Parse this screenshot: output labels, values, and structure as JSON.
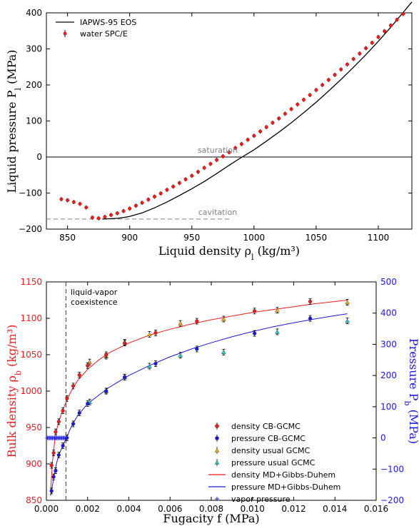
{
  "colors": {
    "red": "#ee1c1c",
    "blue": "#1a1ae0",
    "orange": "#f5a623",
    "cyan": "#2ec4c4",
    "black": "#000000",
    "gray": "#808080"
  },
  "chart_data": [
    {
      "type": "line",
      "xlabel": "Liquid density ρ_l (kg/m³)",
      "ylabel": "Liquid pressure P_l (MPa)",
      "xlim": [
        833,
        1127
      ],
      "ylim": [
        -200,
        400
      ],
      "xticks": [
        "850",
        "900",
        "950",
        "1000",
        "1050",
        "1100"
      ],
      "yticks": [
        "−200",
        "−100",
        "0",
        "100",
        "200",
        "300",
        "400"
      ],
      "legend_position": "top-left",
      "legend": [
        "IAPWS-95 EOS",
        "water SPC/E"
      ],
      "annotations": {
        "saturation": "saturation",
        "cavitation": "cavitation"
      },
      "hlines": {
        "saturation": 0,
        "cavitation": -172
      },
      "series": [
        {
          "name": "IAPWS-95 EOS",
          "kind": "line",
          "color": "#000000",
          "x": [
            878,
            885,
            890,
            895,
            900,
            910,
            920,
            930,
            940,
            950,
            960,
            970,
            980,
            990,
            1000,
            1010,
            1020,
            1030,
            1040,
            1050,
            1060,
            1070,
            1080,
            1090,
            1100,
            1110,
            1120,
            1127
          ],
          "y": [
            -172,
            -171,
            -170,
            -168,
            -165,
            -155,
            -141,
            -125,
            -107,
            -88,
            -68,
            -46,
            -23,
            -1,
            20,
            44,
            69,
            95,
            123,
            152,
            183,
            215,
            249,
            284,
            321,
            360,
            401,
            430
          ]
        },
        {
          "name": "water SPC/E",
          "kind": "points",
          "color": "#ee1c1c",
          "x": [
            845,
            850,
            855,
            860,
            865,
            870,
            875,
            880,
            885,
            890,
            895,
            900,
            905,
            910,
            915,
            920,
            925,
            930,
            935,
            940,
            945,
            950,
            955,
            960,
            965,
            970,
            975,
            980,
            985,
            990,
            995,
            1000,
            1005,
            1010,
            1015,
            1020,
            1025,
            1030,
            1035,
            1040,
            1045,
            1050,
            1055,
            1060,
            1065,
            1070,
            1075,
            1080,
            1085,
            1090,
            1095,
            1100,
            1105,
            1110,
            1115,
            1120
          ],
          "y": [
            -117,
            -120,
            -125,
            -130,
            -140,
            -168,
            -170,
            -166,
            -161,
            -156,
            -150,
            -143,
            -135,
            -127,
            -118,
            -110,
            -101,
            -91,
            -82,
            -72,
            -62,
            -52,
            -41,
            -30,
            -19,
            -8,
            2,
            13,
            25,
            36,
            48,
            59,
            71,
            83,
            95,
            107,
            120,
            133,
            146,
            159,
            172,
            186,
            200,
            214,
            228,
            243,
            257,
            272,
            287,
            302,
            317,
            333,
            349,
            365,
            381,
            397
          ]
        }
      ]
    },
    {
      "type": "scatter",
      "xlabel": "Fugacity f (MPa)",
      "ylabel_left": "Bulk density ρ_b (kg/m³)",
      "ylabel_right": "Pressure P_b (MPa)",
      "xlim": [
        0.0,
        0.016
      ],
      "ylim_left": [
        850,
        1150
      ],
      "ylim_right": [
        -200,
        500
      ],
      "xticks": [
        "0.000",
        "0.002",
        "0.004",
        "0.006",
        "0.008",
        "0.010",
        "0.012",
        "0.014",
        "0.016"
      ],
      "yticks_left": [
        "850",
        "900",
        "950",
        "1000",
        "1050",
        "1100",
        "1150"
      ],
      "yticks_right": [
        "−200",
        "−100",
        "0",
        "100",
        "200",
        "300",
        "400",
        "500"
      ],
      "vline": {
        "x": 0.00095,
        "label_line1": "liquid-vapor",
        "label_line2": "coexistence"
      },
      "legend_position": "lower-right",
      "legend": [
        "density CB-GCMC",
        "pressure CB-GCMC",
        "density usual GCMC",
        "pressure usual GCMC",
        "density MD+Gibbs-Duhem",
        "pressure MD+Gibbs-Duhem",
        "vapor pressure"
      ],
      "series": [
        {
          "name": "density CB-GCMC",
          "axis": "left",
          "color": "#ee1c1c",
          "x": [
            0.00025,
            0.00035,
            0.00045,
            0.0006,
            0.0008,
            0.001,
            0.0013,
            0.0016,
            0.002,
            0.0029,
            0.0038,
            0.0053,
            0.0073,
            0.0101,
            0.0128
          ],
          "y": [
            898,
            915,
            944,
            958,
            973,
            990,
            1007,
            1022,
            1035,
            1050,
            1066,
            1080,
            1096,
            1110,
            1123
          ]
        },
        {
          "name": "pressure CB-GCMC",
          "axis": "right",
          "color": "#1a1ae0",
          "x": [
            0.00025,
            0.00035,
            0.00045,
            0.0006,
            0.0008,
            0.001,
            0.0013,
            0.0016,
            0.002,
            0.0029,
            0.0038,
            0.0053,
            0.0073,
            0.0101,
            0.0128
          ],
          "y": [
            -170,
            -125,
            -105,
            -55,
            -25,
            0,
            45,
            80,
            110,
            150,
            195,
            238,
            285,
            335,
            383
          ]
        },
        {
          "name": "density usual GCMC",
          "axis": "left",
          "color": "#f5a623",
          "x": [
            0.0021,
            0.0029,
            0.0038,
            0.005,
            0.0065,
            0.0086,
            0.0112,
            0.0146
          ],
          "y": [
            1040,
            1048,
            1067,
            1078,
            1093,
            1099,
            1111,
            1122
          ]
        },
        {
          "name": "pressure usual GCMC",
          "axis": "right",
          "color": "#2ec4c4",
          "x": [
            0.0021,
            0.0029,
            0.0038,
            0.005,
            0.0065,
            0.0086,
            0.0112,
            0.0146
          ],
          "y": [
            115,
            150,
            195,
            230,
            265,
            275,
            340,
            375
          ]
        },
        {
          "name": "density MD+Gibbs-Duhem",
          "axis": "left",
          "color": "#ee1c1c",
          "x": [
            0.0002,
            0.0003,
            0.0004,
            0.0005,
            0.0006,
            0.0008,
            0.001,
            0.0012,
            0.0015,
            0.002,
            0.0025,
            0.003,
            0.004,
            0.005,
            0.006,
            0.007,
            0.008,
            0.009,
            0.01,
            0.011,
            0.012,
            0.013,
            0.014,
            0.0146
          ],
          "y": [
            862,
            905,
            930,
            947,
            958,
            975,
            988,
            1000,
            1014,
            1030,
            1042,
            1052,
            1066,
            1077,
            1085,
            1092,
            1098,
            1103,
            1108,
            1112,
            1116,
            1120,
            1123,
            1125
          ]
        },
        {
          "name": "pressure MD+Gibbs-Duhem",
          "axis": "right",
          "color": "#1a1ae0",
          "x": [
            0.0002,
            0.0003,
            0.0004,
            0.0005,
            0.0006,
            0.0008,
            0.001,
            0.0012,
            0.0015,
            0.002,
            0.0025,
            0.003,
            0.004,
            0.005,
            0.006,
            0.007,
            0.008,
            0.009,
            0.01,
            0.011,
            0.012,
            0.013,
            0.014,
            0.0146
          ],
          "y": [
            -185,
            -150,
            -110,
            -80,
            -55,
            -25,
            5,
            35,
            70,
            110,
            135,
            160,
            200,
            232,
            260,
            284,
            305,
            324,
            341,
            356,
            369,
            381,
            392,
            398
          ]
        },
        {
          "name": "vapor pressure",
          "axis": "right",
          "color": "#1a1ae0",
          "x": [
            5e-05,
            0.0001,
            0.00015,
            0.0002,
            0.00025,
            0.0003,
            0.00035,
            0.0004,
            0.00045,
            0.0005,
            0.00055,
            0.0006,
            0.00065,
            0.0007,
            0.00075,
            0.0008,
            0.00085,
            0.0009
          ],
          "y": [
            0,
            0,
            0,
            0,
            0,
            0,
            0,
            0,
            0,
            0,
            0,
            0,
            0,
            0,
            0,
            0,
            0,
            0
          ]
        }
      ]
    }
  ]
}
